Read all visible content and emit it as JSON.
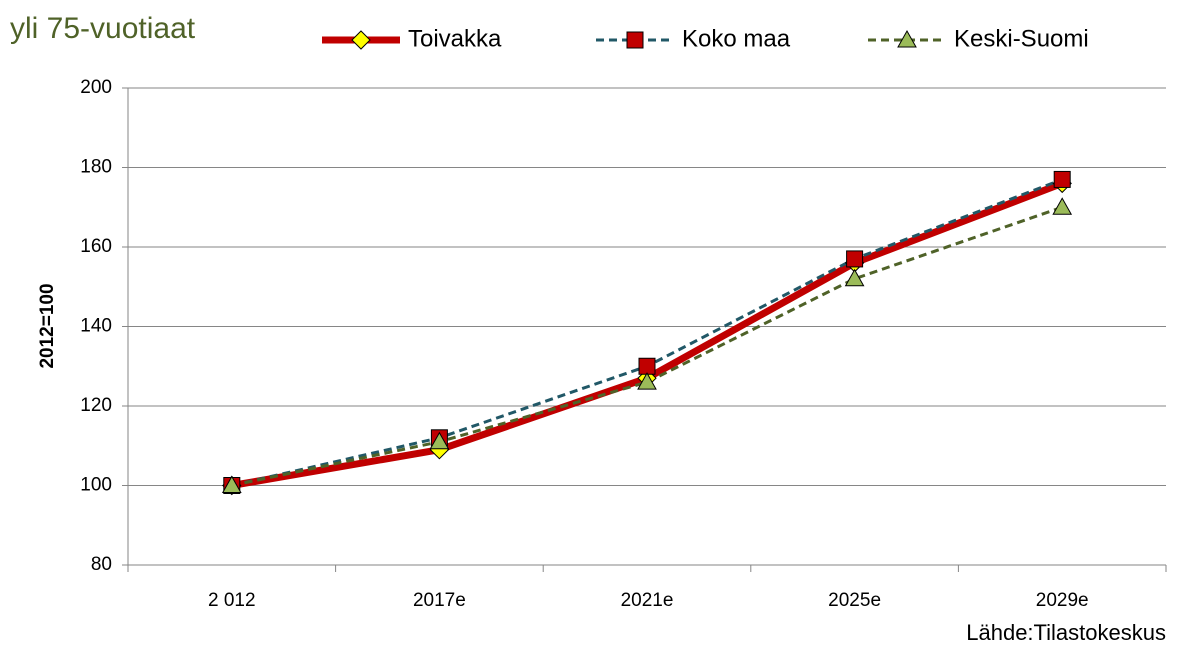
{
  "chart_data": {
    "type": "line",
    "title": "yli 75-vuotiaat",
    "y_label": "2012=100",
    "source": "Lähde:Tilastokeskus",
    "categories": [
      "2 012",
      "2017e",
      "2021e",
      "2025e",
      "2029e"
    ],
    "series": [
      {
        "name": "Toivakka",
        "color": "#c00000",
        "marker": "diamond",
        "marker_color": "#ffff00",
        "dashed": false,
        "values": [
          100,
          109,
          127,
          156,
          176
        ]
      },
      {
        "name": "Koko maa",
        "color": "#215867",
        "marker": "square",
        "marker_color": "#c00000",
        "dashed": true,
        "values": [
          100,
          112,
          130,
          157,
          177
        ]
      },
      {
        "name": "Keski-Suomi",
        "color": "#4f6228",
        "marker": "triangle",
        "marker_color": "#9bbb59",
        "dashed": true,
        "values": [
          100,
          111,
          126,
          152,
          170
        ]
      }
    ],
    "ylim": [
      80,
      200
    ],
    "yticks": [
      80,
      100,
      120,
      140,
      160,
      180,
      200
    ],
    "grid": true,
    "legend": "top"
  }
}
